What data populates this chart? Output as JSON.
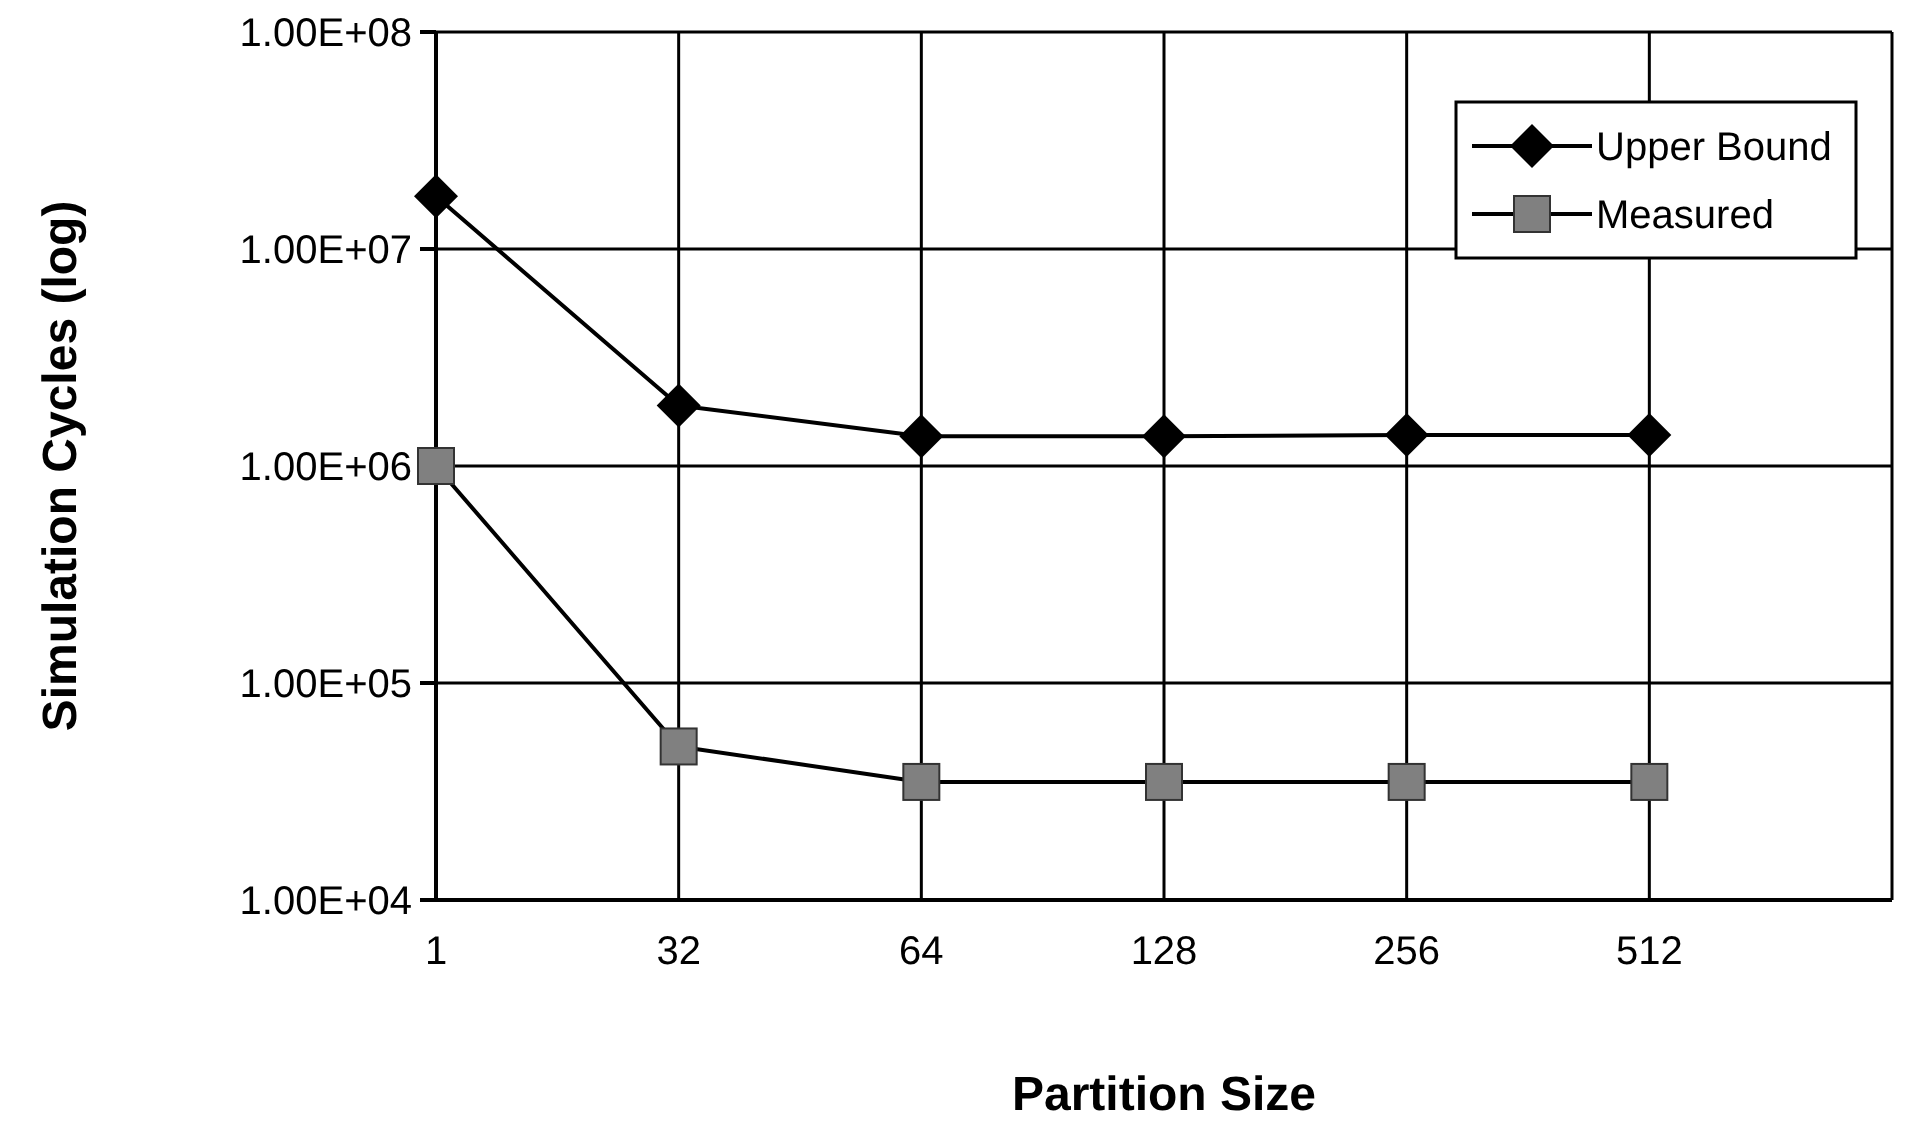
{
  "chart_data": {
    "type": "line",
    "xlabel": "Partition Size",
    "ylabel": "Simulation Cycles (log)",
    "categories": [
      "1",
      "32",
      "64",
      "128",
      "256",
      "512",
      null
    ],
    "series": [
      {
        "name": "Upper Bound",
        "color": "#000000",
        "marker": "diamond",
        "values": [
          17500000,
          1900000,
          1370000,
          1370000,
          1390000,
          1390000,
          null
        ]
      },
      {
        "name": "Measured",
        "color": "#808080",
        "marker": "square",
        "values": [
          1000000,
          51000,
          35000,
          35000,
          35000,
          35000,
          null
        ]
      }
    ],
    "log": "y",
    "ylim": [
      10000,
      100000000
    ],
    "yticks": [
      {
        "value": 10000,
        "label": "1.00E+04"
      },
      {
        "value": 100000,
        "label": "1.00E+05"
      },
      {
        "value": 1000000,
        "label": "1.00E+06"
      },
      {
        "value": 10000000,
        "label": "1.00E+07"
      },
      {
        "value": 100000000,
        "label": "1.00E+08"
      }
    ],
    "grid": true,
    "legend": "top right"
  }
}
